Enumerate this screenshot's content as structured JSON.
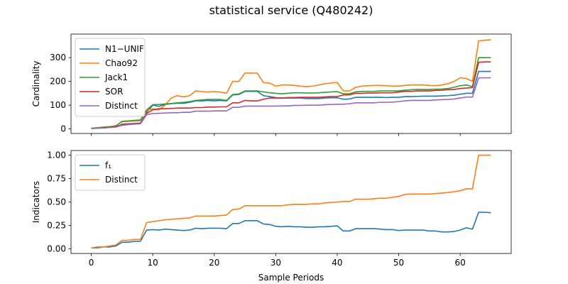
{
  "figure": {
    "title": "statistical service (Q480242)",
    "xlabel": "Sample Periods"
  },
  "chart_data": [
    {
      "type": "line",
      "ylabel": "Cardinality",
      "xlim": [
        -3.3,
        68.3
      ],
      "ylim": [
        -19,
        399
      ],
      "xticks": [
        0,
        10,
        20,
        30,
        40,
        50,
        60
      ],
      "yticks": [
        0,
        100,
        200,
        300
      ],
      "show_xtick_labels": false,
      "legend": "upper left",
      "x": [
        0,
        1,
        2,
        3,
        4,
        5,
        6,
        7,
        8,
        9,
        10,
        11,
        12,
        13,
        14,
        15,
        16,
        17,
        18,
        19,
        20,
        21,
        22,
        23,
        24,
        25,
        26,
        27,
        28,
        29,
        30,
        31,
        32,
        33,
        34,
        35,
        36,
        37,
        38,
        39,
        40,
        41,
        42,
        43,
        44,
        45,
        46,
        47,
        48,
        49,
        50,
        51,
        52,
        53,
        54,
        55,
        56,
        57,
        58,
        59,
        60,
        61,
        62,
        63,
        64,
        65
      ],
      "series": [
        {
          "name": "N1−UNIF",
          "color": "#1f77b4",
          "values": [
            2,
            3,
            5,
            6,
            8,
            20,
            22,
            23,
            25,
            70,
            100,
            95,
            103,
            106,
            108,
            108,
            112,
            118,
            118,
            120,
            118,
            120,
            118,
            143,
            145,
            158,
            158,
            158,
            140,
            136,
            132,
            130,
            130,
            130,
            130,
            128,
            128,
            128,
            130,
            131,
            131,
            125,
            126,
            133,
            133,
            133,
            133,
            133,
            132,
            133,
            133,
            136,
            136,
            137,
            138,
            138,
            138,
            139,
            140,
            142,
            146,
            150,
            150,
            242,
            242,
            242
          ]
        },
        {
          "name": "Chao92",
          "color": "#ff7f0e",
          "values": [
            3,
            5,
            8,
            10,
            14,
            30,
            32,
            33,
            35,
            78,
            85,
            80,
            100,
            130,
            140,
            135,
            140,
            160,
            157,
            155,
            157,
            155,
            150,
            200,
            200,
            235,
            235,
            235,
            195,
            193,
            180,
            185,
            185,
            183,
            180,
            178,
            180,
            185,
            190,
            193,
            196,
            160,
            160,
            175,
            180,
            182,
            183,
            183,
            182,
            180,
            180,
            183,
            185,
            185,
            185,
            183,
            182,
            185,
            190,
            200,
            215,
            212,
            200,
            370,
            373,
            375
          ]
        },
        {
          "name": "Jack1",
          "color": "#2ca02c",
          "values": [
            3,
            5,
            7,
            9,
            12,
            32,
            34,
            36,
            38,
            80,
            102,
            103,
            105,
            107,
            110,
            112,
            115,
            120,
            122,
            124,
            124,
            124,
            120,
            145,
            147,
            160,
            160,
            160,
            156,
            152,
            150,
            148,
            150,
            152,
            152,
            151,
            151,
            152,
            154,
            156,
            157,
            148,
            148,
            156,
            158,
            158,
            158,
            160,
            160,
            160,
            160,
            163,
            165,
            166,
            166,
            166,
            167,
            168,
            170,
            175,
            182,
            185,
            178,
            300,
            300,
            300
          ]
        },
        {
          "name": "SOR",
          "color": "#d62728",
          "values": [
            2,
            3,
            5,
            7,
            10,
            18,
            20,
            22,
            24,
            65,
            80,
            85,
            85,
            86,
            88,
            88,
            88,
            90,
            90,
            92,
            92,
            93,
            93,
            110,
            110,
            120,
            118,
            118,
            125,
            130,
            130,
            130,
            132,
            132,
            133,
            133,
            133,
            133,
            135,
            136,
            136,
            143,
            143,
            150,
            150,
            151,
            151,
            152,
            152,
            152,
            155,
            158,
            158,
            160,
            160,
            160,
            162,
            163,
            165,
            166,
            170,
            172,
            174,
            280,
            282,
            282
          ]
        },
        {
          "name": "Distinct",
          "color": "#9467bd",
          "values": [
            2,
            3,
            4,
            6,
            8,
            15,
            18,
            20,
            22,
            60,
            65,
            66,
            67,
            68,
            68,
            70,
            70,
            75,
            75,
            75,
            76,
            76,
            76,
            91,
            91,
            96,
            96,
            96,
            96,
            96,
            96,
            97,
            97,
            99,
            99,
            100,
            100,
            100,
            102,
            103,
            104,
            104,
            106,
            110,
            110,
            110,
            110,
            112,
            112,
            113,
            115,
            118,
            120,
            120,
            120,
            120,
            122,
            123,
            124,
            126,
            130,
            134,
            134,
            215,
            215,
            215
          ]
        }
      ]
    },
    {
      "type": "line",
      "ylabel": "Indicators",
      "xlim": [
        -3.3,
        68.3
      ],
      "ylim": [
        -0.05,
        1.05
      ],
      "xticks": [
        0,
        10,
        20,
        30,
        40,
        50,
        60
      ],
      "yticks": [
        0.0,
        0.25,
        0.5,
        0.75,
        1.0
      ],
      "ytick_labels": [
        "0.00",
        "0.25",
        "0.50",
        "0.75",
        "1.00"
      ],
      "show_xtick_labels": true,
      "legend": "upper left",
      "x": [
        0,
        1,
        2,
        3,
        4,
        5,
        6,
        7,
        8,
        9,
        10,
        11,
        12,
        13,
        14,
        15,
        16,
        17,
        18,
        19,
        20,
        21,
        22,
        23,
        24,
        25,
        26,
        27,
        28,
        29,
        30,
        31,
        32,
        33,
        34,
        35,
        36,
        37,
        38,
        39,
        40,
        41,
        42,
        43,
        44,
        45,
        46,
        47,
        48,
        49,
        50,
        51,
        52,
        53,
        54,
        55,
        56,
        57,
        58,
        59,
        60,
        61,
        62,
        63,
        64,
        65
      ],
      "series": [
        {
          "name": "f₁",
          "color": "#1f77b4",
          "values": [
            0.01,
            0.01,
            0.02,
            0.02,
            0.03,
            0.07,
            0.07,
            0.08,
            0.08,
            0.2,
            0.205,
            0.2,
            0.21,
            0.205,
            0.2,
            0.195,
            0.2,
            0.22,
            0.215,
            0.22,
            0.22,
            0.22,
            0.215,
            0.27,
            0.27,
            0.3,
            0.3,
            0.3,
            0.265,
            0.26,
            0.24,
            0.235,
            0.24,
            0.235,
            0.235,
            0.23,
            0.23,
            0.235,
            0.235,
            0.24,
            0.245,
            0.19,
            0.19,
            0.215,
            0.215,
            0.215,
            0.215,
            0.21,
            0.205,
            0.205,
            0.195,
            0.2,
            0.2,
            0.2,
            0.2,
            0.19,
            0.19,
            0.18,
            0.18,
            0.185,
            0.2,
            0.225,
            0.21,
            0.39,
            0.39,
            0.385
          ]
        },
        {
          "name": "Distinct",
          "color": "#ff7f0e",
          "values": [
            0.01,
            0.02,
            0.02,
            0.03,
            0.04,
            0.09,
            0.09,
            0.1,
            0.1,
            0.28,
            0.29,
            0.3,
            0.31,
            0.315,
            0.32,
            0.325,
            0.33,
            0.35,
            0.35,
            0.35,
            0.35,
            0.355,
            0.36,
            0.42,
            0.425,
            0.46,
            0.46,
            0.46,
            0.46,
            0.46,
            0.46,
            0.46,
            0.47,
            0.475,
            0.475,
            0.475,
            0.48,
            0.48,
            0.49,
            0.495,
            0.5,
            0.505,
            0.505,
            0.53,
            0.53,
            0.53,
            0.535,
            0.54,
            0.54,
            0.55,
            0.56,
            0.58,
            0.585,
            0.585,
            0.585,
            0.585,
            0.59,
            0.595,
            0.6,
            0.61,
            0.62,
            0.64,
            0.64,
            1.0,
            1.0,
            1.0
          ]
        }
      ]
    }
  ]
}
